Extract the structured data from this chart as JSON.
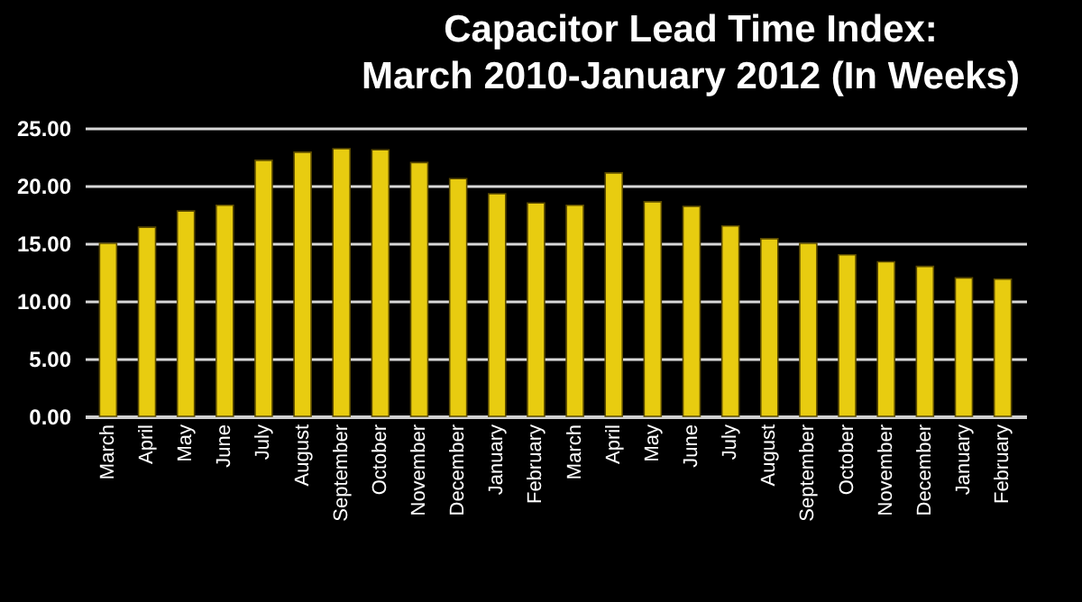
{
  "chart_data": {
    "type": "bar",
    "title": [
      "Capacitor Lead Time Index:",
      "March 2010-January 2012 (In Weeks)"
    ],
    "categories": [
      "March",
      "April",
      "May",
      "June",
      "July",
      "August",
      "September",
      "October",
      "November",
      "December",
      "January",
      "February",
      "March",
      "April",
      "May",
      "June",
      "July",
      "August",
      "September",
      "October",
      "November",
      "December",
      "January",
      "February"
    ],
    "values": [
      15.0,
      16.4,
      17.8,
      18.3,
      22.2,
      22.9,
      23.2,
      23.1,
      22.0,
      20.6,
      19.3,
      18.5,
      18.3,
      21.1,
      18.6,
      18.2,
      16.5,
      15.4,
      15.0,
      14.0,
      13.4,
      13.0,
      12.0,
      11.9
    ],
    "color": "#e8cc10",
    "ylim": [
      0,
      25
    ],
    "yticks": [
      {
        "value": 0,
        "label": "0.00"
      },
      {
        "value": 5,
        "label": "5.00"
      },
      {
        "value": 10,
        "label": "10.00"
      },
      {
        "value": 15,
        "label": "15.00"
      },
      {
        "value": 20,
        "label": "20.00"
      },
      {
        "value": 25,
        "label": "25.00"
      }
    ],
    "grid": "y"
  }
}
